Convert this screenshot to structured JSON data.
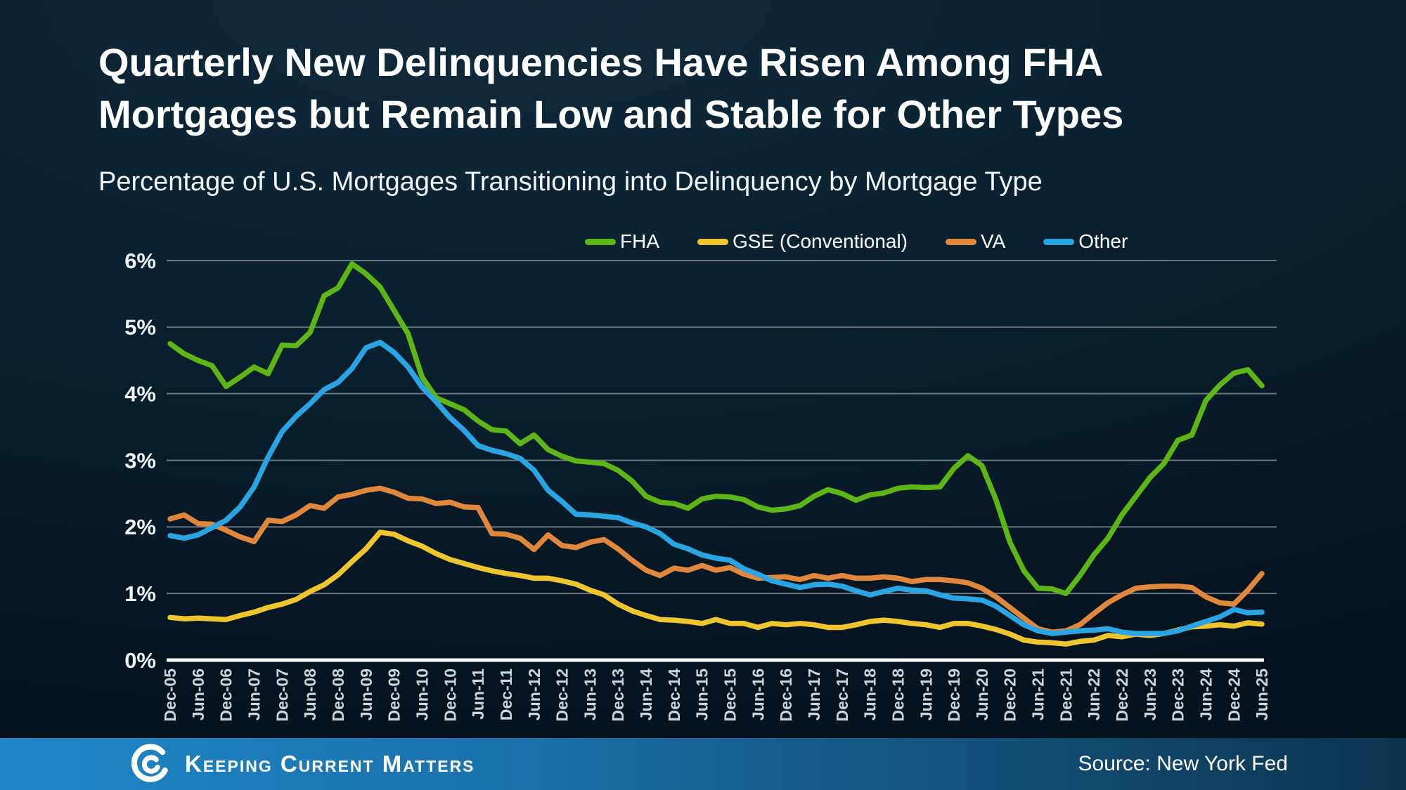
{
  "title": {
    "line1": "Quarterly New Delinquencies Have Risen Among FHA",
    "line2": "Mortgages but Remain Low and Stable for Other Types"
  },
  "subtitle": "Percentage of U.S. Mortgages Transitioning into Delinquency by Mortgage Type",
  "footer": {
    "brand": "Keeping Current Matters",
    "logo_icon": "kcm-swirl-icon",
    "source": "Source: New York Fed"
  },
  "colors": {
    "background_top": "#122a3b",
    "background_bottom": "#04121d",
    "gridline": "#6e767e",
    "zero_axis": "#ffffff",
    "axis_text": "#ccd4da",
    "footer_bar_left": "#1f86c7",
    "footer_bar_right": "#0b344f"
  },
  "chart_data": {
    "type": "line",
    "title": "Percentage of U.S. Mortgages Transitioning into Delinquency by Mortgage Type",
    "xlabel": "",
    "ylabel": "",
    "ylim": [
      0,
      6
    ],
    "grid": true,
    "legend_position": "top",
    "yticks": [
      "0%",
      "1%",
      "2%",
      "3%",
      "4%",
      "5%",
      "6%"
    ],
    "x_tick_note": "labels shown every second quarter",
    "x": [
      "Dec-05",
      "Mar-06",
      "Jun-06",
      "Sep-06",
      "Dec-06",
      "Mar-07",
      "Jun-07",
      "Sep-07",
      "Dec-07",
      "Mar-08",
      "Jun-08",
      "Sep-08",
      "Dec-08",
      "Mar-09",
      "Jun-09",
      "Sep-09",
      "Dec-09",
      "Mar-10",
      "Jun-10",
      "Sep-10",
      "Dec-10",
      "Mar-11",
      "Jun-11",
      "Sep-11",
      "Dec-11",
      "Mar-12",
      "Jun-12",
      "Sep-12",
      "Dec-12",
      "Mar-13",
      "Jun-13",
      "Sep-13",
      "Dec-13",
      "Mar-14",
      "Jun-14",
      "Sep-14",
      "Dec-14",
      "Mar-15",
      "Jun-15",
      "Sep-15",
      "Dec-15",
      "Mar-16",
      "Jun-16",
      "Sep-16",
      "Dec-16",
      "Mar-17",
      "Jun-17",
      "Sep-17",
      "Dec-17",
      "Mar-18",
      "Jun-18",
      "Sep-18",
      "Dec-18",
      "Mar-19",
      "Jun-19",
      "Sep-19",
      "Dec-19",
      "Mar-20",
      "Jun-20",
      "Sep-20",
      "Dec-20",
      "Mar-21",
      "Jun-21",
      "Sep-21",
      "Dec-21",
      "Mar-22",
      "Jun-22",
      "Sep-22",
      "Dec-22",
      "Mar-23",
      "Jun-23",
      "Sep-23",
      "Dec-23",
      "Mar-24",
      "Jun-24",
      "Sep-24",
      "Dec-24",
      "Mar-25",
      "Jun-25"
    ],
    "series": [
      {
        "name": "FHA",
        "key": "fha",
        "color": "#5cb617",
        "values": [
          4.75,
          4.6,
          4.5,
          4.42,
          4.11,
          4.25,
          4.4,
          4.3,
          4.73,
          4.72,
          4.92,
          5.47,
          5.59,
          5.95,
          5.8,
          5.6,
          5.25,
          4.9,
          4.25,
          3.94,
          3.85,
          3.76,
          3.59,
          3.46,
          3.44,
          3.25,
          3.38,
          3.16,
          3.06,
          2.99,
          2.97,
          2.95,
          2.85,
          2.69,
          2.46,
          2.37,
          2.35,
          2.28,
          2.42,
          2.46,
          2.45,
          2.41,
          2.3,
          2.25,
          2.27,
          2.32,
          2.46,
          2.56,
          2.5,
          2.4,
          2.48,
          2.51,
          2.58,
          2.6,
          2.59,
          2.6,
          2.88,
          3.07,
          2.92,
          2.41,
          1.77,
          1.34,
          1.08,
          1.07,
          1.0,
          1.27,
          1.58,
          1.83,
          2.18,
          2.46,
          2.74,
          2.95,
          3.3,
          3.38,
          3.9,
          4.13,
          4.31,
          4.36,
          4.12
        ]
      },
      {
        "name": "GSE (Conventional)",
        "key": "gse",
        "color": "#eec52c",
        "values": [
          0.64,
          0.62,
          0.63,
          0.62,
          0.61,
          0.67,
          0.72,
          0.79,
          0.84,
          0.91,
          1.03,
          1.13,
          1.28,
          1.48,
          1.67,
          1.92,
          1.89,
          1.79,
          1.71,
          1.6,
          1.51,
          1.45,
          1.39,
          1.34,
          1.3,
          1.27,
          1.23,
          1.23,
          1.19,
          1.14,
          1.05,
          0.98,
          0.84,
          0.74,
          0.67,
          0.61,
          0.6,
          0.58,
          0.55,
          0.61,
          0.55,
          0.55,
          0.49,
          0.55,
          0.53,
          0.55,
          0.53,
          0.49,
          0.49,
          0.53,
          0.58,
          0.6,
          0.58,
          0.55,
          0.53,
          0.49,
          0.55,
          0.55,
          0.51,
          0.46,
          0.39,
          0.3,
          0.27,
          0.26,
          0.24,
          0.28,
          0.3,
          0.37,
          0.35,
          0.39,
          0.37,
          0.4,
          0.45,
          0.5,
          0.51,
          0.53,
          0.51,
          0.56,
          0.54
        ]
      },
      {
        "name": "VA",
        "key": "va",
        "color": "#e0873c",
        "values": [
          2.12,
          2.18,
          2.05,
          2.04,
          1.95,
          1.85,
          1.78,
          2.1,
          2.08,
          2.18,
          2.32,
          2.28,
          2.45,
          2.49,
          2.55,
          2.58,
          2.52,
          2.43,
          2.42,
          2.35,
          2.37,
          2.3,
          2.29,
          1.9,
          1.89,
          1.83,
          1.66,
          1.88,
          1.72,
          1.69,
          1.77,
          1.81,
          1.67,
          1.5,
          1.35,
          1.27,
          1.38,
          1.35,
          1.42,
          1.35,
          1.39,
          1.29,
          1.23,
          1.24,
          1.25,
          1.21,
          1.27,
          1.23,
          1.27,
          1.23,
          1.23,
          1.25,
          1.23,
          1.18,
          1.21,
          1.21,
          1.19,
          1.16,
          1.08,
          0.95,
          0.79,
          0.63,
          0.47,
          0.42,
          0.44,
          0.53,
          0.7,
          0.86,
          0.98,
          1.08,
          1.1,
          1.11,
          1.11,
          1.09,
          0.95,
          0.86,
          0.84,
          1.05,
          1.3
        ]
      },
      {
        "name": "Other",
        "key": "other",
        "color": "#29a5e3",
        "values": [
          1.87,
          1.83,
          1.88,
          1.99,
          2.1,
          2.3,
          2.6,
          3.05,
          3.43,
          3.66,
          3.85,
          4.06,
          4.17,
          4.38,
          4.69,
          4.77,
          4.62,
          4.4,
          4.1,
          3.88,
          3.64,
          3.45,
          3.22,
          3.15,
          3.1,
          3.03,
          2.85,
          2.55,
          2.38,
          2.19,
          2.18,
          2.16,
          2.14,
          2.06,
          2.0,
          1.9,
          1.74,
          1.67,
          1.58,
          1.53,
          1.5,
          1.37,
          1.29,
          1.19,
          1.14,
          1.09,
          1.13,
          1.14,
          1.11,
          1.04,
          0.98,
          1.03,
          1.08,
          1.05,
          1.04,
          0.98,
          0.93,
          0.92,
          0.9,
          0.81,
          0.67,
          0.53,
          0.44,
          0.4,
          0.42,
          0.44,
          0.45,
          0.47,
          0.42,
          0.4,
          0.4,
          0.4,
          0.44,
          0.51,
          0.58,
          0.65,
          0.76,
          0.71,
          0.72
        ]
      }
    ]
  }
}
